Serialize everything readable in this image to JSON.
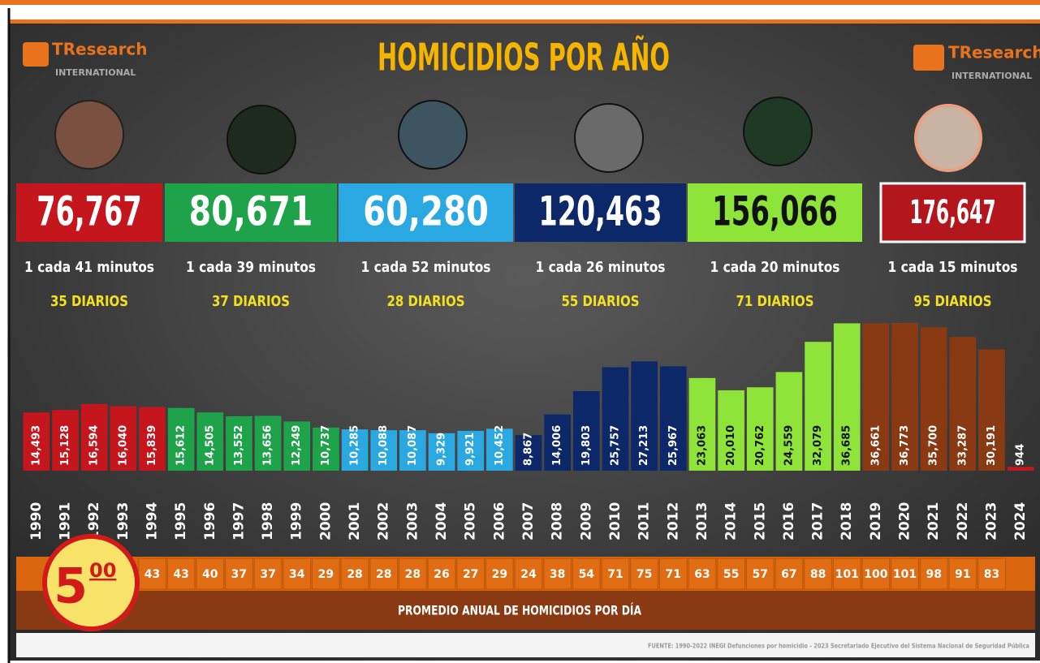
{
  "chart_data": {
    "type": "bar",
    "title": "HOMICIDIOS POR AÑO",
    "categories": [
      "1990",
      "1991",
      "1992",
      "1993",
      "1994",
      "1995",
      "1996",
      "1997",
      "1998",
      "1999",
      "2000",
      "2001",
      "2002",
      "2003",
      "2004",
      "2005",
      "2006",
      "2007",
      "2008",
      "2009",
      "2010",
      "2011",
      "2012",
      "2013",
      "2014",
      "2015",
      "2016",
      "2017",
      "2018",
      "2019",
      "2020",
      "2021",
      "2022",
      "2023",
      "2024"
    ],
    "values": [
      14493,
      15128,
      16594,
      16040,
      15839,
      15612,
      14505,
      13552,
      13656,
      12249,
      10737,
      10285,
      10088,
      10087,
      9329,
      9921,
      10452,
      8867,
      14006,
      19803,
      25757,
      27213,
      25967,
      23063,
      20010,
      20762,
      24559,
      32079,
      36685,
      36661,
      36773,
      35700,
      33287,
      30191,
      944
    ],
    "value_labels": [
      "14,493",
      "15,128",
      "16,594",
      "16,040",
      "15,839",
      "15,612",
      "14,505",
      "13,552",
      "13,656",
      "12,249",
      "10,737",
      "10,285",
      "10,088",
      "10,087",
      "9,329",
      "9,921",
      "10,452",
      "8,867",
      "14,006",
      "19,803",
      "25,757",
      "27,213",
      "25,967",
      "23,063",
      "20,010",
      "20,762",
      "24,559",
      "32,079",
      "36,685",
      "36,661",
      "36,773",
      "35,700",
      "33,287",
      "30,191",
      "944"
    ],
    "colors": [
      "#c4161c",
      "#c4161c",
      "#c4161c",
      "#c4161c",
      "#c4161c",
      "#1fa34a",
      "#1fa34a",
      "#1fa34a",
      "#1fa34a",
      "#1fa34a",
      "#1fa34a",
      "#2aa8e2",
      "#2aa8e2",
      "#2aa8e2",
      "#2aa8e2",
      "#2aa8e2",
      "#2aa8e2",
      "#0d2868",
      "#0d2868",
      "#0d2868",
      "#0d2868",
      "#0d2868",
      "#0d2868",
      "#8fe43a",
      "#8fe43a",
      "#8fe43a",
      "#8fe43a",
      "#8fe43a",
      "#8fe43a",
      "#8a3a12",
      "#8a3a12",
      "#8a3a12",
      "#8a3a12",
      "#8a3a12",
      "#c4161c"
    ],
    "daily_title": "PROMEDIO ANUAL DE HOMICIDIOS POR DÍA",
    "daily_values": [
      null,
      null,
      null,
      null,
      43,
      43,
      40,
      37,
      37,
      34,
      29,
      28,
      28,
      28,
      26,
      27,
      29,
      24,
      38,
      54,
      71,
      75,
      71,
      63,
      55,
      57,
      67,
      88,
      101,
      100,
      101,
      98,
      91,
      83,
      null
    ]
  },
  "logo": {
    "name": "TResearch",
    "sub": "INTERNATIONAL"
  },
  "periods": [
    {
      "total": "76,767",
      "rate": "1 cada 41 minutos",
      "daily": "35 DIARIOS",
      "color": "#c4161c"
    },
    {
      "total": "80,671",
      "rate": "1 cada 39 minutos",
      "daily": "37 DIARIOS",
      "color": "#1fa34a"
    },
    {
      "total": "60,280",
      "rate": "1 cada 52 minutos",
      "daily": "28 DIARIOS",
      "color": "#2aa8e2"
    },
    {
      "total": "120,463",
      "rate": "1 cada 26 minutos",
      "daily": "55 DIARIOS",
      "color": "#0d2868"
    },
    {
      "total": "156,066",
      "rate": "1 cada 20 minutos",
      "daily": "71 DIARIOS",
      "color": "#8fe43a"
    },
    {
      "total": "176,647",
      "rate": "1 cada 15 minutos",
      "daily": "95 DIARIOS",
      "color": "#b3161c"
    }
  ],
  "badge": {
    "main": "5",
    "sup": "00"
  },
  "source": "FUENTE: 1990-2022 INEGI Defunciones por homicidio - 2023 Secretariado Ejecutivo del Sistema Nacional de Seguridad Pública"
}
